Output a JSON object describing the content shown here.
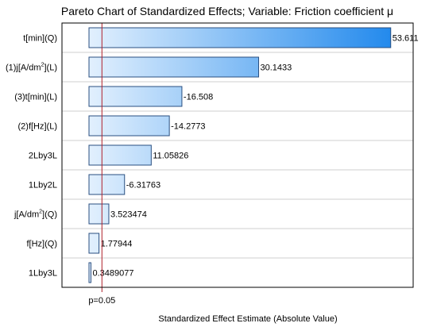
{
  "chart_data": {
    "type": "bar",
    "orientation": "horizontal",
    "title": "Pareto Chart of Standardized Effects; Variable: Friction coefficient μ",
    "xlabel": "Standardized Effect Estimate (Absolute Value)",
    "ylabel": "",
    "xlim": [
      -4.8,
      57.6
    ],
    "grid": true,
    "categories": [
      {
        "main": "t[min](Q)",
        "sup": "",
        "after": ""
      },
      {
        "main": "(1)j[A/dm",
        "sup": "2",
        "after": "](L)"
      },
      {
        "main": "(3)t[min](L)",
        "sup": "",
        "after": ""
      },
      {
        "main": "(2)f[Hz](L)",
        "sup": "",
        "after": ""
      },
      {
        "main": "2Lby3L",
        "sup": "",
        "after": ""
      },
      {
        "main": "1Lby2L",
        "sup": "",
        "after": ""
      },
      {
        "main": "j[A/dm",
        "sup": "2",
        "after": "](Q)"
      },
      {
        "main": "f[Hz](Q)",
        "sup": "",
        "after": ""
      },
      {
        "main": "1Lby3L",
        "sup": "",
        "after": ""
      }
    ],
    "values": [
      53.611,
      30.1433,
      16.508,
      14.2773,
      11.05826,
      6.31763,
      3.523474,
      1.77944,
      0.3489077
    ],
    "value_labels": [
      "53.611",
      "30.1433",
      "-16.508",
      "-14.2773",
      "11.05826",
      "-6.31763",
      "3.523474",
      "1.77944",
      "0.3489077"
    ],
    "reference_line": {
      "value": 2.3,
      "label": "p=0.05",
      "color": "#b0202a"
    },
    "colors": {
      "bar_light": "#f3f9ff",
      "bar_dark": "#1e87ec",
      "bar_stroke": "#2a4f80",
      "grid": "#cfcfcf",
      "frame": "#000000"
    }
  }
}
